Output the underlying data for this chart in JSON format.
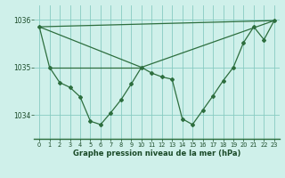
{
  "title": "Graphe pression niveau de la mer (hPa)",
  "bg_color": "#cff0ea",
  "grid_color": "#88ccc2",
  "line_color": "#2d6e3e",
  "marker_color": "#2d6e3e",
  "ylim": [
    1033.5,
    1036.3
  ],
  "yticks": [
    1034,
    1035,
    1036
  ],
  "xlim": [
    -0.5,
    23.5
  ],
  "xticks": [
    0,
    1,
    2,
    3,
    4,
    5,
    6,
    7,
    8,
    9,
    10,
    11,
    12,
    13,
    14,
    15,
    16,
    17,
    18,
    19,
    20,
    21,
    22,
    23
  ],
  "main_x": [
    0,
    1,
    2,
    3,
    4,
    5,
    6,
    7,
    8,
    9,
    10,
    11,
    12,
    13,
    14,
    15,
    16,
    17,
    18,
    19,
    20,
    21,
    22,
    23
  ],
  "main_y": [
    1035.85,
    1035.0,
    1034.68,
    1034.58,
    1034.38,
    1033.87,
    1033.8,
    1034.05,
    1034.32,
    1034.65,
    1035.0,
    1034.88,
    1034.8,
    1034.75,
    1033.92,
    1033.8,
    1034.1,
    1034.4,
    1034.72,
    1035.0,
    1035.52,
    1035.85,
    1035.58,
    1035.98
  ],
  "straight_lines": [
    {
      "x": [
        0,
        10
      ],
      "y": [
        1035.85,
        1035.0
      ]
    },
    {
      "x": [
        0,
        23
      ],
      "y": [
        1035.85,
        1035.98
      ]
    },
    {
      "x": [
        1,
        10
      ],
      "y": [
        1035.0,
        1035.0
      ]
    },
    {
      "x": [
        10,
        23
      ],
      "y": [
        1035.0,
        1035.98
      ]
    }
  ]
}
